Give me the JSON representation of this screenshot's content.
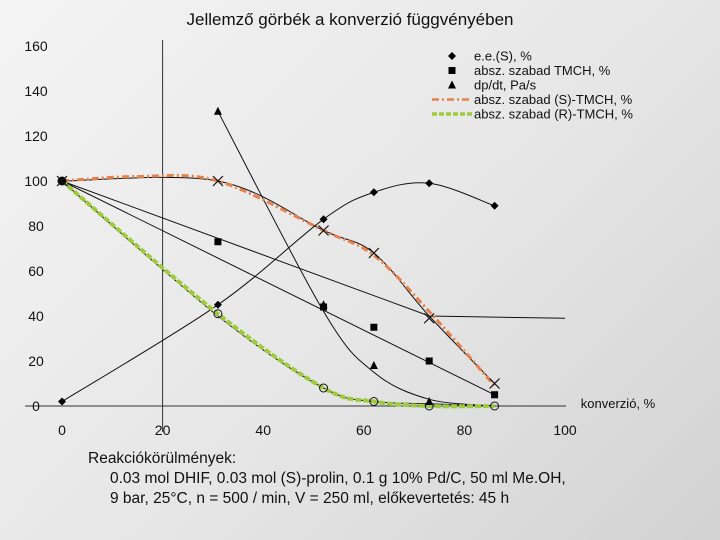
{
  "chart_data": {
    "type": "line",
    "title": "Jellemző görbék a konverzió függvényében",
    "xlabel": "konverzió, %",
    "ylabel": "",
    "xlim": [
      0,
      100
    ],
    "ylim": [
      0,
      160
    ],
    "x_ticks": [
      "0",
      "20",
      "40",
      "60",
      "80",
      "100"
    ],
    "y_ticks": [
      "0",
      "20",
      "40",
      "60",
      "80",
      "100",
      "120",
      "140",
      "160"
    ],
    "grid": false,
    "legend_position": "top-right",
    "series": [
      {
        "name": "e.e.(S), %",
        "marker": "diamond",
        "color": "#000000",
        "points": [
          [
            0,
            2
          ],
          [
            31,
            45
          ],
          [
            52,
            83
          ],
          [
            62,
            95
          ],
          [
            73,
            99
          ],
          [
            86,
            89
          ]
        ]
      },
      {
        "name": "absz. szabad TMCH, %",
        "marker": "square",
        "color": "#000000",
        "points": [
          [
            0,
            100
          ],
          [
            31,
            73
          ],
          [
            52,
            44
          ],
          [
            62,
            35
          ],
          [
            73,
            20
          ],
          [
            86,
            5
          ]
        ]
      },
      {
        "name": "dp/dt, Pa/s",
        "marker": "triangle",
        "color": "#000000",
        "points": [
          [
            31,
            131
          ],
          [
            52,
            45
          ],
          [
            62,
            18
          ],
          [
            73,
            2
          ]
        ]
      },
      {
        "name": "absz. szabad (S)-TMCH, %",
        "marker": "cross",
        "color": "#e8804a",
        "points": [
          [
            0,
            100
          ],
          [
            31,
            100
          ],
          [
            52,
            78
          ],
          [
            62,
            68
          ],
          [
            73,
            39
          ],
          [
            86,
            10
          ]
        ]
      },
      {
        "name": "absz. szabad (R)-TMCH, %",
        "marker": "circle",
        "color": "#9ccc3c",
        "points": [
          [
            0,
            100
          ],
          [
            31,
            41
          ],
          [
            52,
            8
          ],
          [
            62,
            2
          ],
          [
            73,
            0
          ],
          [
            86,
            0
          ]
        ]
      }
    ]
  },
  "conditions": {
    "heading": "Reakciókörülmények:",
    "line1": "0.03 mol DHIF, 0.03 mol (S)-prolin, 0.1 g 10% Pd/C, 50 ml Me.OH,",
    "line2": "9 bar, 25°C, n = 500 / min, V = 250 ml, előkevertetés: 45 h"
  }
}
